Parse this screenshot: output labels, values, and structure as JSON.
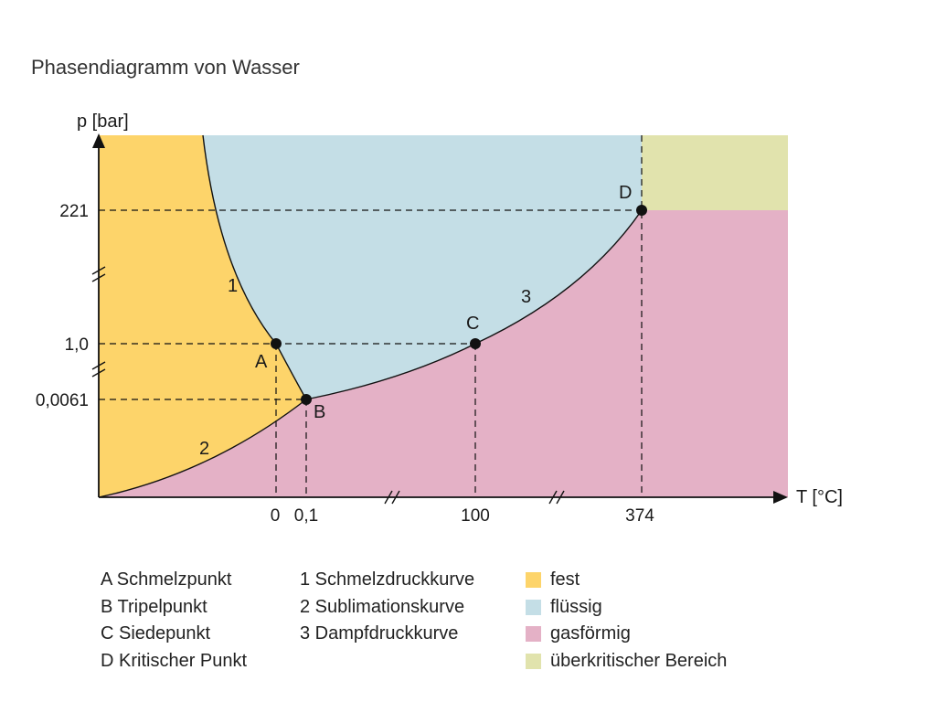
{
  "title": "Phasendiagramm von Wasser",
  "axes": {
    "x_label": "T [°C]",
    "y_label": "p [bar]",
    "x_ticks": [
      "0",
      "0,1",
      "100",
      "374"
    ],
    "y_ticks": [
      "221",
      "1,0",
      "0,0061"
    ]
  },
  "regions": [
    {
      "id": "fest",
      "label": "fest",
      "color": "#fdd46a"
    },
    {
      "id": "fluessig",
      "label": "flüssig",
      "color": "#c4dee6"
    },
    {
      "id": "gasfoermig",
      "label": "gasförmig",
      "color": "#e4b1c6"
    },
    {
      "id": "ueberkritisch",
      "label": "überkritischer Bereich",
      "color": "#e1e3ad"
    }
  ],
  "points": [
    {
      "letter": "A",
      "name": "Schmelzpunkt",
      "T": "0",
      "p": "1,0"
    },
    {
      "letter": "B",
      "name": "Tripelpunkt",
      "T": "0,1",
      "p": "0,0061"
    },
    {
      "letter": "C",
      "name": "Siedepunkt",
      "T": "100",
      "p": "1,0"
    },
    {
      "letter": "D",
      "name": "Kritischer Punkt",
      "T": "374",
      "p": "221"
    }
  ],
  "curves": [
    {
      "number": "1",
      "name": "Schmelzdruckkurve"
    },
    {
      "number": "2",
      "name": "Sublimationskurve"
    },
    {
      "number": "3",
      "name": "Dampfdruckkurve"
    }
  ],
  "legend": {
    "points": [
      "A Schmelzpunkt",
      "B Tripelpunkt",
      "C Siedepunkt",
      "D Kritischer Punkt"
    ],
    "curves": [
      "1 Schmelzdruckkurve",
      "2 Sublimationskurve",
      "3 Dampfdruckkurve"
    ],
    "regions": [
      "fest",
      "flüssig",
      "gasförmig",
      "überkritischer Bereich"
    ]
  }
}
